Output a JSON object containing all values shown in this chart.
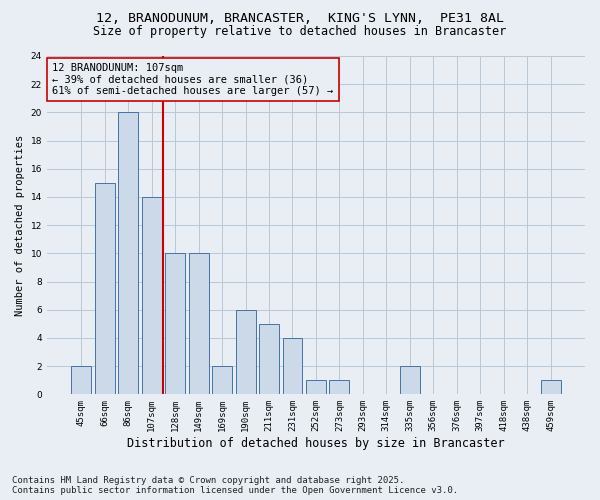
{
  "title_line1": "12, BRANODUNUM, BRANCASTER,  KING'S LYNN,  PE31 8AL",
  "title_line2": "Size of property relative to detached houses in Brancaster",
  "xlabel": "Distribution of detached houses by size in Brancaster",
  "ylabel": "Number of detached properties",
  "categories": [
    "45sqm",
    "66sqm",
    "86sqm",
    "107sqm",
    "128sqm",
    "149sqm",
    "169sqm",
    "190sqm",
    "211sqm",
    "231sqm",
    "252sqm",
    "273sqm",
    "293sqm",
    "314sqm",
    "335sqm",
    "356sqm",
    "376sqm",
    "397sqm",
    "418sqm",
    "438sqm",
    "459sqm"
  ],
  "values": [
    2,
    15,
    20,
    14,
    10,
    10,
    2,
    6,
    5,
    4,
    1,
    1,
    0,
    0,
    2,
    0,
    0,
    0,
    0,
    0,
    1
  ],
  "bar_facecolor": "#ccd9e8",
  "bar_edgecolor": "#4472a8",
  "highlight_index": 3,
  "highlight_line_color": "#cc0000",
  "grid_color": "#b8c8d8",
  "background_color": "#e8eef4",
  "annotation_text": "12 BRANODUNUM: 107sqm\n← 39% of detached houses are smaller (36)\n61% of semi-detached houses are larger (57) →",
  "annotation_box_edgecolor": "#cc0000",
  "annotation_fontsize": 7.5,
  "ylim": [
    0,
    24
  ],
  "yticks": [
    0,
    2,
    4,
    6,
    8,
    10,
    12,
    14,
    16,
    18,
    20,
    22,
    24
  ],
  "footer_text": "Contains HM Land Registry data © Crown copyright and database right 2025.\nContains public sector information licensed under the Open Government Licence v3.0.",
  "title_fontsize": 9.5,
  "subtitle_fontsize": 8.5,
  "xlabel_fontsize": 8.5,
  "ylabel_fontsize": 7.5,
  "tick_fontsize": 6.5,
  "footer_fontsize": 6.5
}
